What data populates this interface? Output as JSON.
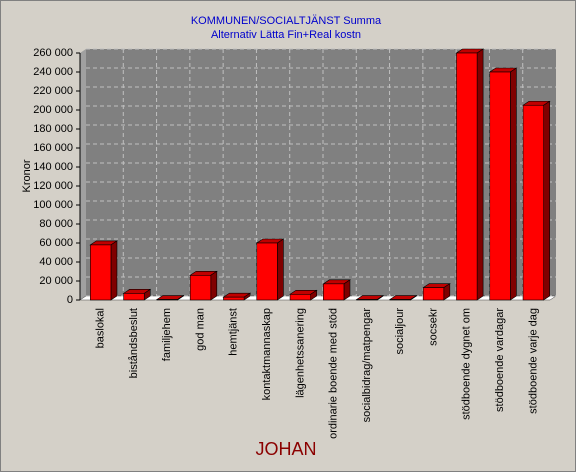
{
  "chart_data": {
    "type": "bar3d",
    "title": "KOMMUNEN/SOCIALTJÄNST  Summa",
    "subtitle": "Alternativ Lätta Fin+Real kostn",
    "y_label": "Kronor",
    "x_label": "JOHAN",
    "categories": [
      "baslokal",
      "biståndsbeslut",
      "familjehem",
      "god man",
      "hemtjänst",
      "kontaktmannaskap",
      "lägenhetssanering",
      "ordinarie boende med stöd",
      "socialbidrag/matpengar",
      "socialjour",
      "socsekr",
      "stödboende dygnet om",
      "stödboende vardagar",
      "stödboende varje dag"
    ],
    "values": [
      58000,
      7000,
      500,
      26000,
      3000,
      60000,
      6000,
      17000,
      500,
      500,
      13000,
      260000,
      240000,
      205000
    ],
    "color": "#ff0000",
    "ylim": [
      0,
      260000
    ],
    "yticks": [
      0,
      {
        "value": 20000,
        "label": "20 000"
      },
      {
        "value": 40000,
        "label": "40 000"
      },
      {
        "value": 60000,
        "label": "60 000"
      },
      {
        "value": 80000,
        "label": "80 000"
      },
      {
        "value": 100000,
        "label": "100 000"
      },
      {
        "value": 120000,
        "label": "120 000"
      },
      {
        "value": 140000,
        "label": "140 000"
      },
      {
        "value": 160000,
        "label": "160 000"
      },
      {
        "value": 180000,
        "label": "180 000"
      },
      {
        "value": 200000,
        "label": "200 000"
      },
      {
        "value": 220000,
        "label": "220 000"
      },
      {
        "value": 240000,
        "label": "240 000"
      },
      {
        "value": 260000,
        "label": "260 000"
      }
    ],
    "grid": true
  }
}
